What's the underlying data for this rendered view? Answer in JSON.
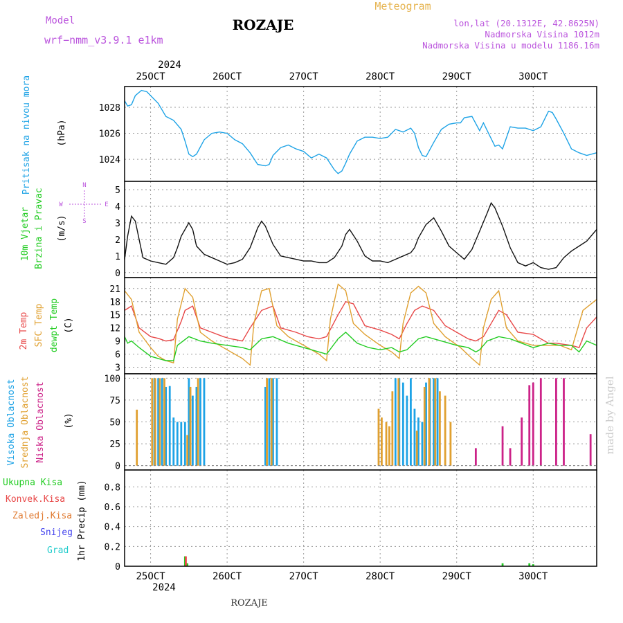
{
  "header": {
    "model_label": "Model",
    "model_name": "wrf−nmm_v3.9.1  e1km",
    "title": "ROZAJE",
    "meteogram_label": "Meteogram",
    "lonlat": "lon,lat (20.1312E, 42.8625N)",
    "elevation": "Nadmorska Visina 1012m",
    "model_elevation": "Nadmorska Visina u modelu 1186.16m",
    "footer_title": "ROZAJE",
    "watermark": "made by Angel"
  },
  "colors": {
    "purple": "#bb55dd",
    "gold": "#e6b450",
    "cyan": "#1ea3e6",
    "red": "#e84848",
    "orange": "#e0a030",
    "green": "#22cc22",
    "magenta": "#cc2288",
    "blue": "#4444ee",
    "teal": "#22cccc"
  },
  "chart_data": {
    "type": "meteogram",
    "x_axis": {
      "ticks": [
        "25OCT",
        "26OCT",
        "27OCT",
        "28OCT",
        "29OCT",
        "30OCT"
      ],
      "year": "2024",
      "range_days": [
        24.66,
        30.83
      ]
    },
    "panels": [
      {
        "id": "pressure",
        "type": "line",
        "label": "Pritisak na nivou mora",
        "unit": "(hPa)",
        "yticks": [
          1024,
          1026,
          1028
        ],
        "ylim": [
          1022.3,
          1029.6
        ],
        "series": [
          {
            "name": "Pritisak na nivou mora",
            "x": [
              24.66,
              24.7,
              24.75,
              24.8,
              24.88,
              24.95,
              25.0,
              25.1,
              25.2,
              25.3,
              25.4,
              25.45,
              25.5,
              25.55,
              25.6,
              25.7,
              25.8,
              25.9,
              26.0,
              26.1,
              26.2,
              26.3,
              26.4,
              26.5,
              26.55,
              26.6,
              26.7,
              26.8,
              26.9,
              27.0,
              27.1,
              27.2,
              27.3,
              27.4,
              27.45,
              27.5,
              27.55,
              27.6,
              27.7,
              27.8,
              27.9,
              28.0,
              28.1,
              28.2,
              28.3,
              28.4,
              28.45,
              28.5,
              28.55,
              28.6,
              28.7,
              28.8,
              28.9,
              29.0,
              29.05,
              29.1,
              29.2,
              29.3,
              29.35,
              29.4,
              29.5,
              29.55,
              29.6,
              29.7,
              29.8,
              29.9,
              30.0,
              30.1,
              30.2,
              30.25,
              30.3,
              30.4,
              30.5,
              30.6,
              30.7,
              30.83
            ],
            "y": [
              1028.5,
              1028.1,
              1028.2,
              1028.9,
              1029.3,
              1029.2,
              1028.9,
              1028.3,
              1027.3,
              1027.0,
              1026.3,
              1025.4,
              1024.4,
              1024.2,
              1024.4,
              1025.5,
              1026.0,
              1026.1,
              1026.0,
              1025.5,
              1025.2,
              1024.5,
              1023.6,
              1023.5,
              1023.6,
              1024.3,
              1024.9,
              1025.1,
              1024.8,
              1024.6,
              1024.1,
              1024.4,
              1024.1,
              1023.2,
              1022.9,
              1023.1,
              1023.7,
              1024.4,
              1025.4,
              1025.7,
              1025.7,
              1025.6,
              1025.7,
              1026.3,
              1026.1,
              1026.4,
              1026.0,
              1024.9,
              1024.3,
              1024.2,
              1025.3,
              1026.3,
              1026.7,
              1026.8,
              1026.8,
              1027.2,
              1027.3,
              1026.2,
              1026.8,
              1026.2,
              1025.0,
              1025.1,
              1024.8,
              1026.5,
              1026.4,
              1026.4,
              1026.2,
              1026.5,
              1027.7,
              1027.6,
              1027.1,
              1026.0,
              1024.8,
              1024.5,
              1024.3,
              1024.5
            ]
          }
        ]
      },
      {
        "id": "wind",
        "type": "line",
        "label1": "10m Vjetar",
        "label2": "Brzina i Pravac",
        "unit": "(m/s)",
        "compass": {
          "n": "N",
          "s": "S",
          "w": "W",
          "e": "E"
        },
        "yticks": [
          0,
          1,
          2,
          3,
          4,
          5
        ],
        "ylim": [
          -0.3,
          5.5
        ],
        "series": [
          {
            "name": "Brzina",
            "x": [
              24.66,
              24.7,
              24.75,
              24.8,
              24.85,
              24.9,
              25.0,
              25.1,
              25.2,
              25.3,
              25.35,
              25.4,
              25.5,
              25.55,
              25.6,
              25.7,
              25.8,
              25.9,
              26.0,
              26.1,
              26.2,
              26.3,
              26.4,
              26.45,
              26.5,
              26.6,
              26.7,
              26.8,
              26.9,
              27.0,
              27.1,
              27.2,
              27.3,
              27.4,
              27.5,
              27.55,
              27.6,
              27.7,
              27.8,
              27.9,
              28.0,
              28.1,
              28.2,
              28.3,
              28.4,
              28.45,
              28.5,
              28.6,
              28.7,
              28.8,
              28.9,
              29.0,
              29.1,
              29.2,
              29.3,
              29.4,
              29.45,
              29.5,
              29.6,
              29.7,
              29.8,
              29.9,
              30.0,
              30.1,
              30.2,
              30.3,
              30.4,
              30.5,
              30.6,
              30.7,
              30.83
            ],
            "y": [
              0.8,
              2.2,
              3.4,
              3.1,
              2.0,
              0.9,
              0.7,
              0.6,
              0.5,
              0.9,
              1.5,
              2.2,
              3.0,
              2.6,
              1.6,
              1.1,
              0.9,
              0.7,
              0.5,
              0.6,
              0.8,
              1.5,
              2.7,
              3.1,
              2.8,
              1.7,
              1.0,
              0.9,
              0.8,
              0.7,
              0.7,
              0.6,
              0.6,
              0.9,
              1.6,
              2.3,
              2.6,
              1.9,
              1.0,
              0.7,
              0.7,
              0.6,
              0.8,
              1.0,
              1.2,
              1.5,
              2.1,
              2.9,
              3.3,
              2.5,
              1.6,
              1.2,
              0.8,
              1.4,
              2.5,
              3.6,
              4.2,
              3.9,
              2.8,
              1.5,
              0.6,
              0.4,
              0.6,
              0.3,
              0.2,
              0.3,
              0.9,
              1.3,
              1.6,
              1.9,
              2.6
            ]
          }
        ]
      },
      {
        "id": "temperature",
        "type": "line",
        "labels": [
          "2m Temp",
          "SFC Temp",
          "dewpt Temp"
        ],
        "unit": "(C)",
        "yticks": [
          3,
          6,
          9,
          12,
          15,
          18,
          21
        ],
        "ylim": [
          1.5,
          23.5
        ],
        "series": [
          {
            "name": "2m Temp",
            "color": "#e84848",
            "x": [
              24.66,
              24.75,
              24.85,
              25.0,
              25.1,
              25.2,
              25.3,
              25.4,
              25.45,
              25.55,
              25.65,
              25.8,
              25.95,
              26.05,
              26.2,
              26.3,
              26.45,
              26.6,
              26.7,
              26.9,
              27.05,
              27.2,
              27.3,
              27.45,
              27.55,
              27.65,
              27.8,
              28.0,
              28.15,
              28.25,
              28.35,
              28.45,
              28.55,
              28.7,
              28.85,
              29.05,
              29.15,
              29.25,
              29.35,
              29.45,
              29.55,
              29.65,
              29.8,
              30.0,
              30.1,
              30.2,
              30.3,
              30.5,
              30.6,
              30.7,
              30.83
            ],
            "y": [
              16,
              17,
              12,
              10,
              9.6,
              9,
              9.3,
              13.5,
              16,
              17,
              12,
              11,
              10,
              9.5,
              9,
              12,
              16,
              17,
              12,
              11,
              10,
              9.5,
              10,
              15,
              18,
              17.5,
              12.5,
              11.5,
              10.5,
              9.5,
              13,
              16,
              17,
              16,
              12.5,
              10.5,
              9.5,
              9,
              10,
              13,
              16,
              15,
              11,
              10.5,
              9.5,
              8.5,
              8.5,
              8,
              7.5,
              12,
              14.5
            ]
          },
          {
            "name": "SFC Temp",
            "color": "#e0a030",
            "x": [
              24.66,
              24.75,
              24.85,
              25.0,
              25.1,
              25.2,
              25.3,
              25.35,
              25.45,
              25.55,
              25.65,
              25.8,
              26.0,
              26.2,
              26.3,
              26.35,
              26.45,
              26.55,
              26.65,
              26.8,
              27.0,
              27.2,
              27.3,
              27.35,
              27.45,
              27.55,
              27.65,
              27.8,
              28.0,
              28.15,
              28.25,
              28.3,
              28.4,
              28.5,
              28.6,
              28.7,
              28.85,
              29.05,
              29.2,
              29.3,
              29.35,
              29.45,
              29.55,
              29.65,
              29.8,
              30.0,
              30.2,
              30.35,
              30.5,
              30.65,
              30.83
            ],
            "y": [
              20.5,
              18.5,
              11,
              7.5,
              5.5,
              4.5,
              4,
              14,
              21,
              19,
              11,
              9,
              7,
              5,
              3.5,
              13,
              20.5,
              21,
              12.5,
              10,
              8,
              6,
              4.5,
              14,
              22,
              20.5,
              13,
              10.5,
              8,
              6.5,
              5,
              13,
              20,
              21.5,
              20,
              13,
              10,
              7.5,
              5,
              3.5,
              12,
              18.5,
              20.5,
              12,
              9,
              8,
              8,
              8,
              7,
              16,
              18.5
            ]
          },
          {
            "name": "dewpt Temp",
            "color": "#22cc22",
            "x": [
              24.66,
              24.7,
              24.75,
              24.85,
              25.0,
              25.1,
              25.2,
              25.3,
              25.35,
              25.5,
              25.65,
              25.8,
              26.0,
              26.2,
              26.3,
              26.45,
              26.6,
              26.8,
              27.0,
              27.2,
              27.3,
              27.45,
              27.55,
              27.7,
              27.85,
              28.0,
              28.15,
              28.25,
              28.35,
              28.5,
              28.6,
              28.8,
              29.0,
              29.15,
              29.25,
              29.3,
              29.4,
              29.55,
              29.7,
              29.85,
              30.0,
              30.2,
              30.35,
              30.5,
              30.6,
              30.7,
              30.83
            ],
            "y": [
              10,
              8.5,
              9,
              7.5,
              5.5,
              5,
              4.5,
              4.5,
              8,
              10,
              9,
              8.5,
              8,
              7.5,
              7,
              9.5,
              10,
              8.5,
              7.5,
              6.5,
              6,
              9.5,
              11,
              8.5,
              7.5,
              7,
              7.5,
              6.5,
              7,
              9.5,
              10,
              9,
              8,
              7.5,
              6.5,
              7,
              9,
              10,
              9.5,
              8.5,
              7.5,
              8.5,
              8,
              8,
              6.5,
              9,
              8
            ]
          }
        ]
      },
      {
        "id": "clouds",
        "type": "bar",
        "labels": [
          "Visoka Oblacnost",
          "Srednja Oblacnost",
          "Niska Oblacnost"
        ],
        "unit": "(%)",
        "yticks": [
          0,
          25,
          50,
          75,
          100
        ],
        "ylim": [
          -5,
          105
        ],
        "series": [
          {
            "name": "Visoka Oblacnost",
            "color": "#1ea3e6",
            "x": [
              25.05,
              25.1,
              25.15,
              25.2,
              25.25,
              25.3,
              25.35,
              25.4,
              25.45,
              25.5,
              25.55,
              25.6,
              25.65,
              25.7,
              26.5,
              26.55,
              26.6,
              26.65,
              28.2,
              28.25,
              28.3,
              28.35,
              28.4,
              28.45,
              28.5,
              28.55,
              28.6,
              28.65,
              28.7,
              28.75
            ],
            "y": [
              100,
              100,
              100,
              90,
              91,
              55,
              50,
              50,
              50,
              100,
              80,
              90,
              100,
              100,
              90,
              100,
              100,
              100,
              100,
              100,
              95,
              80,
              100,
              65,
              55,
              50,
              95,
              100,
              100,
              100
            ]
          },
          {
            "name": "Srednja Oblacnost",
            "color": "#e0a030",
            "x": [
              24.82,
              25.02,
              25.06,
              25.12,
              25.18,
              25.48,
              25.52,
              25.62,
              26.52,
              26.58,
              27.98,
              28.02,
              28.08,
              28.12,
              28.16,
              28.24,
              28.48,
              28.58,
              28.64,
              28.72,
              28.78,
              28.85,
              28.92
            ],
            "y": [
              64,
              100,
              100,
              100,
              100,
              35,
              90,
              100,
              100,
              100,
              65,
              55,
              50,
              45,
              85,
              100,
              40,
              90,
              100,
              100,
              85,
              80,
              50
            ]
          },
          {
            "name": "Niska Oblacnost",
            "color": "#cc2288",
            "x": [
              29.25,
              29.6,
              29.7,
              29.85,
              29.95,
              30.0,
              30.1,
              30.3,
              30.4,
              30.75
            ],
            "y": [
              20,
              45,
              20,
              55,
              92,
              95,
              100,
              100,
              100,
              36
            ]
          }
        ]
      },
      {
        "id": "precip",
        "type": "bar",
        "labels": [
          "Ukupna Kisa",
          "Konvek.Kisa",
          "Zaledj.Kisa",
          "Snijeg",
          "Grad"
        ],
        "ylabel": "1hr Precip (mm)",
        "yticks": [
          0,
          0.2,
          0.4,
          0.6,
          0.8
        ],
        "ylim": [
          0,
          0.97
        ],
        "series": [
          {
            "name": "Ukupna Kisa",
            "color": "#22cc22",
            "x": [
              25.45,
              25.48,
              29.6,
              29.95,
              30.0
            ],
            "y": [
              0.1,
              0.03,
              0.03,
              0.03,
              0.02
            ]
          },
          {
            "name": "Konvek.Kisa",
            "color": "#e84848",
            "x": [
              25.46
            ],
            "y": [
              0.1
            ]
          }
        ]
      }
    ]
  }
}
